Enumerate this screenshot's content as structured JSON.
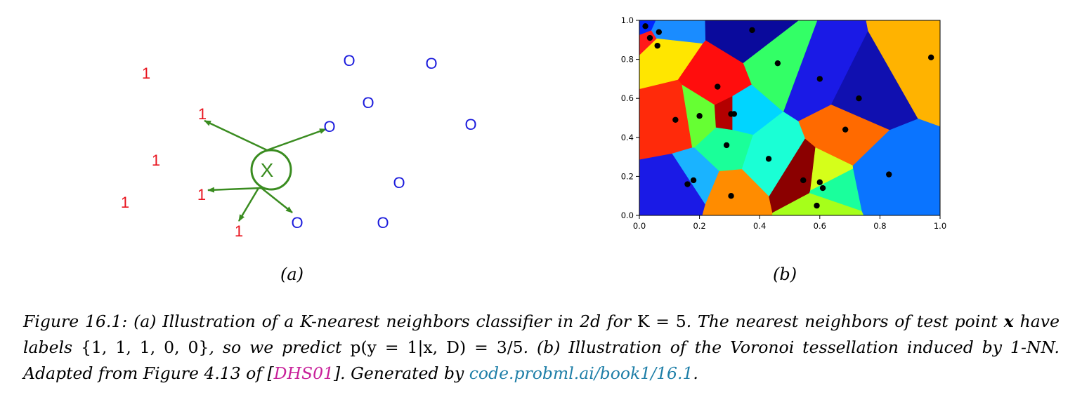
{
  "panel_a": {
    "label": "(a)",
    "test_point_label": "X",
    "ones": [
      {
        "text": "1"
      },
      {
        "text": "1"
      },
      {
        "text": "1"
      },
      {
        "text": "1"
      },
      {
        "text": "1"
      },
      {
        "text": "1"
      }
    ],
    "zeros": [
      {
        "text": "O"
      },
      {
        "text": "O"
      },
      {
        "text": "O"
      },
      {
        "text": "O"
      },
      {
        "text": "O"
      },
      {
        "text": "O"
      },
      {
        "text": "O"
      },
      {
        "text": "O"
      }
    ],
    "colors": {
      "one": "#e8141e",
      "zero": "#1a1adc",
      "arrow": "#3a8c20"
    }
  },
  "panel_b": {
    "label": "(b)",
    "chart_data": {
      "type": "scatter",
      "title": "",
      "xlabel": "",
      "ylabel": "",
      "xlim": [
        0.0,
        1.0
      ],
      "ylim": [
        0.0,
        1.0
      ],
      "xticks": [
        "0.0",
        "0.2",
        "0.4",
        "0.6",
        "0.8",
        "1.0"
      ],
      "yticks": [
        "0.0",
        "0.2",
        "0.4",
        "0.6",
        "0.8",
        "1.0"
      ],
      "points": [
        [
          0.02,
          0.97
        ],
        [
          0.035,
          0.91
        ],
        [
          0.065,
          0.94
        ],
        [
          0.06,
          0.87
        ],
        [
          0.375,
          0.95
        ],
        [
          0.46,
          0.78
        ],
        [
          0.26,
          0.66
        ],
        [
          0.6,
          0.7
        ],
        [
          0.73,
          0.6
        ],
        [
          0.97,
          0.81
        ],
        [
          0.12,
          0.49
        ],
        [
          0.2,
          0.51
        ],
        [
          0.305,
          0.52
        ],
        [
          0.315,
          0.52
        ],
        [
          0.685,
          0.44
        ],
        [
          0.29,
          0.36
        ],
        [
          0.43,
          0.29
        ],
        [
          0.18,
          0.18
        ],
        [
          0.16,
          0.16
        ],
        [
          0.305,
          0.1
        ],
        [
          0.545,
          0.18
        ],
        [
          0.6,
          0.17
        ],
        [
          0.61,
          0.14
        ],
        [
          0.59,
          0.05
        ],
        [
          0.83,
          0.21
        ]
      ],
      "cell_colors": [
        "#0026ff",
        "#ff1a1a",
        "#1a8cff",
        "#ffe600",
        "#0a0a9c",
        "#33ff66",
        "#ff0d0d",
        "#1a1ae6",
        "#1010b0",
        "#ffb300",
        "#ff2a0a",
        "#66ff33",
        "#b30000",
        "#00d5ff",
        "#ff6a00",
        "#1aff99",
        "#1affd5",
        "#1ab3ff",
        "#1a1ae6",
        "#ff8c00",
        "#8b0000",
        "#d5ff1a",
        "#1aff9c",
        "#a6ff1a",
        "#0a74ff"
      ]
    }
  },
  "caption": {
    "fig_label": "Figure 16.1:",
    "part_a": " (a) Illustration of a K-nearest neighbors classifier in 2d for ",
    "k_eq": "K = 5",
    "part_b": ". The nearest neighbors of test point ",
    "x_sym": "x",
    "part_c": " have labels ",
    "labels_set": "{1, 1, 1, 0, 0}",
    "part_d": ", so we predict ",
    "prediction": "p(y = 1|x, D) = 3/5",
    "part_e": ". (b) Illustration of the Voronoi tessellation induced by 1-NN. Adapted from Figure 4.13 of [",
    "cite": "DHS01",
    "part_f": "]. Generated by ",
    "link": "code.probml.ai/book1/16.1",
    "part_g": "."
  }
}
